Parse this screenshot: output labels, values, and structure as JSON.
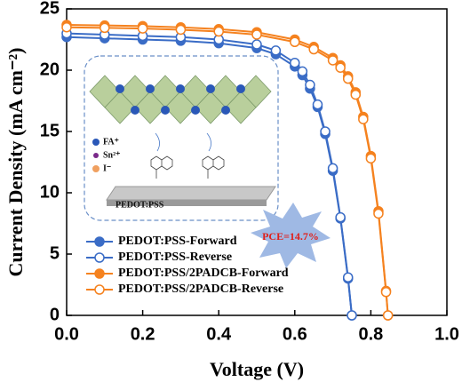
{
  "chart_data": {
    "type": "line",
    "x_label": "Voltage (V)",
    "y_label": "Current Density (mA cm⁻²)",
    "xlim": [
      0,
      1.0
    ],
    "ylim": [
      0,
      25
    ],
    "xticks": [
      {
        "value": 0,
        "label": "0.0"
      },
      {
        "value": 0.2,
        "label": "0.2"
      },
      {
        "value": 0.4,
        "label": "0.4"
      },
      {
        "value": 0.6,
        "label": "0.6"
      },
      {
        "value": 0.8,
        "label": "0.8"
      },
      {
        "value": 1.0,
        "label": "1.0"
      }
    ],
    "yticks": [
      0,
      5,
      10,
      15,
      20,
      25
    ],
    "legend": "lower left",
    "series": [
      {
        "name": "PEDOT:PSS-Forward",
        "color": "#3a6cc6",
        "marker": "filled",
        "x": [
          0,
          0.1,
          0.2,
          0.3,
          0.4,
          0.5,
          0.55,
          0.6,
          0.62,
          0.64,
          0.66,
          0.68,
          0.7,
          0.72,
          0.74,
          0.75
        ],
        "values": [
          22.7,
          22.6,
          22.5,
          22.4,
          22.2,
          21.8,
          21.3,
          20.3,
          19.6,
          18.5,
          17.0,
          14.8,
          11.8,
          7.9,
          3.0,
          0
        ]
      },
      {
        "name": "PEDOT:PSS-Reverse",
        "color": "#3a6cc6",
        "marker": "open",
        "x": [
          0,
          0.1,
          0.2,
          0.3,
          0.4,
          0.5,
          0.55,
          0.6,
          0.62,
          0.64,
          0.66,
          0.68,
          0.7,
          0.72,
          0.74,
          0.75
        ],
        "values": [
          23.0,
          22.9,
          22.8,
          22.7,
          22.5,
          22.1,
          21.6,
          20.6,
          19.9,
          18.8,
          17.2,
          15.0,
          12.0,
          8.0,
          3.1,
          0
        ]
      },
      {
        "name": "PEDOT:PSS/2PADCB-Forward",
        "color": "#f5821f",
        "marker": "filled",
        "x": [
          0,
          0.1,
          0.2,
          0.3,
          0.4,
          0.5,
          0.6,
          0.65,
          0.7,
          0.72,
          0.74,
          0.76,
          0.78,
          0.8,
          0.82,
          0.84,
          0.845
        ],
        "values": [
          23.7,
          23.65,
          23.6,
          23.5,
          23.35,
          23.1,
          22.5,
          21.9,
          21.0,
          20.4,
          19.5,
          18.2,
          16.2,
          13.0,
          8.5,
          2.0,
          0
        ]
      },
      {
        "name": "PEDOT:PSS/2PADCB-Reverse",
        "color": "#f5821f",
        "marker": "open",
        "x": [
          0,
          0.1,
          0.2,
          0.3,
          0.4,
          0.5,
          0.6,
          0.65,
          0.7,
          0.72,
          0.74,
          0.76,
          0.78,
          0.8,
          0.82,
          0.84,
          0.845
        ],
        "values": [
          23.5,
          23.45,
          23.4,
          23.3,
          23.15,
          22.9,
          22.3,
          21.7,
          20.8,
          20.2,
          19.3,
          18.0,
          16.0,
          12.8,
          8.3,
          1.9,
          0
        ]
      }
    ],
    "annotation": "PCE=14.7%",
    "inset": {
      "legend": [
        "FA⁺",
        "Sn²⁺",
        "I⁻"
      ],
      "substrate": "PEDOT:PSS"
    }
  }
}
